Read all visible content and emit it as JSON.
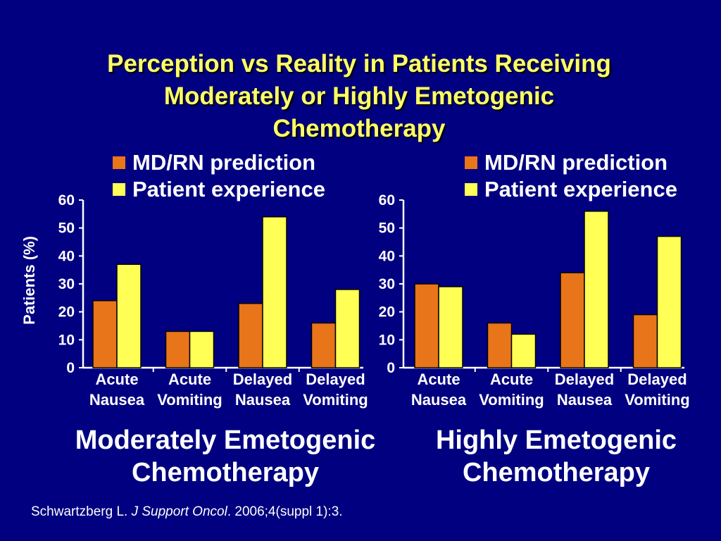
{
  "slide": {
    "title_lines": [
      "Perception vs Reality in Patients Receiving",
      "Moderately or Highly Emetogenic",
      "Chemotherapy"
    ],
    "citation": {
      "author": "Schwartzberg L. ",
      "journal": "J Support Oncol",
      "rest": ". 2006;4(suppl 1):3."
    }
  },
  "colors": {
    "background": "#000080",
    "title": "#ffff66",
    "md_rn": "#e8751a",
    "patient": "#ffff55"
  },
  "chart_data": [
    {
      "type": "bar",
      "panel_label": [
        "Moderately Emetogenic",
        "Chemotherapy"
      ],
      "ylabel": "Patients (%)",
      "ylim": [
        0,
        60
      ],
      "yticks": [
        "0",
        "10",
        "20",
        "30",
        "40",
        "50",
        "60"
      ],
      "categories": [
        [
          "Acute",
          "Nausea"
        ],
        [
          "Acute",
          "Vomiting"
        ],
        [
          "Delayed",
          "Nausea"
        ],
        [
          "Delayed",
          "Vomiting"
        ]
      ],
      "legend": [
        "MD/RN prediction",
        "Patient experience"
      ],
      "series": [
        {
          "name": "MD/RN prediction",
          "values": [
            24,
            13,
            23,
            16
          ]
        },
        {
          "name": "Patient experience",
          "values": [
            37,
            13,
            54,
            28
          ]
        }
      ]
    },
    {
      "type": "bar",
      "panel_label": [
        "Highly Emetogenic",
        "Chemotherapy"
      ],
      "ylabel": "",
      "ylim": [
        0,
        60
      ],
      "yticks": [
        "0",
        "10",
        "20",
        "30",
        "40",
        "50",
        "60"
      ],
      "categories": [
        [
          "Acute",
          "Nausea"
        ],
        [
          "Acute",
          "Vomiting"
        ],
        [
          "Delayed",
          "Nausea"
        ],
        [
          "Delayed",
          "Vomiting"
        ]
      ],
      "legend": [
        "MD/RN prediction",
        "Patient experience"
      ],
      "series": [
        {
          "name": "MD/RN prediction",
          "values": [
            30,
            16,
            34,
            19
          ]
        },
        {
          "name": "Patient experience",
          "values": [
            29,
            12,
            56,
            47
          ]
        }
      ]
    }
  ]
}
